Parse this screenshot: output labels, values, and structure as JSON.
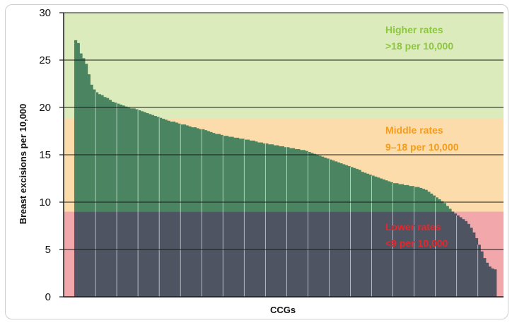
{
  "chart_data": {
    "type": "bar",
    "xlabel": "CCGs",
    "ylabel": "Breast excisions per 10,000",
    "ylim": [
      0,
      30
    ],
    "yticks": [
      "0",
      "5",
      "10",
      "15",
      "20",
      "25",
      "30"
    ],
    "grid": true,
    "bands": [
      {
        "name": "lower",
        "from": 0,
        "to": 9,
        "color": "#f2a7ab",
        "label_color": "#e8262d",
        "label_line1": "Lower rates",
        "label_line2": "<9 per 10,000"
      },
      {
        "name": "middle",
        "from": 9,
        "to": 18.8,
        "color": "#fbdcaa",
        "label_color": "#f39c1e",
        "label_line1": "Middle rates",
        "label_line2": "9–18 per 10,000"
      },
      {
        "name": "higher",
        "from": 18.8,
        "to": 30,
        "color": "#dcebbb",
        "label_color": "#8dc63f",
        "label_line1": "Higher rates",
        "label_line2": ">18 per 10,000"
      }
    ],
    "bar_colors": {
      "above": "#4b8460",
      "below": "#4e5461"
    },
    "threshold_low": 9,
    "values": [
      27.1,
      26.8,
      25.7,
      25.2,
      24.6,
      23.5,
      22.4,
      21.9,
      21.6,
      21.4,
      21.3,
      21.1,
      21.0,
      20.8,
      20.6,
      20.5,
      20.4,
      20.3,
      20.2,
      20.1,
      20.0,
      19.9,
      19.9,
      19.8,
      19.7,
      19.6,
      19.5,
      19.4,
      19.3,
      19.2,
      19.1,
      19.0,
      18.9,
      18.8,
      18.7,
      18.6,
      18.5,
      18.5,
      18.4,
      18.3,
      18.2,
      18.2,
      18.1,
      18.0,
      17.9,
      17.9,
      17.8,
      17.7,
      17.7,
      17.6,
      17.5,
      17.4,
      17.3,
      17.2,
      17.2,
      17.1,
      17.0,
      17.0,
      16.9,
      16.9,
      16.8,
      16.8,
      16.7,
      16.7,
      16.6,
      16.6,
      16.5,
      16.5,
      16.4,
      16.3,
      16.3,
      16.2,
      16.2,
      16.1,
      16.1,
      16.0,
      16.0,
      15.9,
      15.9,
      15.8,
      15.8,
      15.7,
      15.7,
      15.6,
      15.6,
      15.5,
      15.5,
      15.4,
      15.3,
      15.2,
      15.1,
      15.0,
      14.9,
      14.8,
      14.7,
      14.6,
      14.5,
      14.4,
      14.3,
      14.2,
      14.1,
      14.0,
      13.9,
      13.8,
      13.7,
      13.6,
      13.5,
      13.4,
      13.2,
      13.1,
      13.0,
      12.9,
      12.8,
      12.7,
      12.6,
      12.5,
      12.4,
      12.3,
      12.2,
      12.1,
      12.0,
      12.0,
      11.9,
      11.9,
      11.8,
      11.8,
      11.7,
      11.7,
      11.6,
      11.6,
      11.5,
      11.4,
      11.3,
      11.1,
      10.9,
      10.7,
      10.5,
      10.3,
      10.1,
      9.9,
      9.6,
      9.3,
      9.0,
      8.8,
      8.6,
      8.4,
      8.2,
      8.0,
      7.7,
      7.3,
      6.8,
      6.2,
      5.5,
      4.8,
      4.1,
      3.6,
      3.2,
      3.0,
      2.9
    ]
  }
}
